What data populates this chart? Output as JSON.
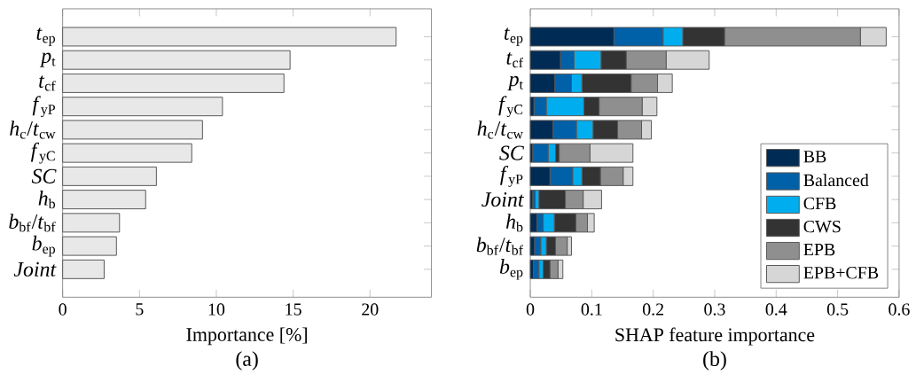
{
  "chart_data": [
    {
      "type": "bar",
      "orientation": "horizontal",
      "xlabel": "Importance [%]",
      "categories": [
        "*t*$_{ep}$",
        "*p*$_{t}$",
        "*t*$_{cf}$",
        "*f*$_{yP}$",
        "*h*$_{c}$/*t*$_{cw}$",
        "*f*$_{yC}$",
        "*SC*",
        "*h*$_{b}$",
        "*b*$_{bf}$/*t*$_{bf}$",
        "*b*$_{ep}$",
        "*Joint*"
      ],
      "values": [
        21.7,
        14.8,
        14.4,
        10.4,
        9.1,
        8.4,
        6.1,
        5.4,
        3.7,
        3.5,
        2.7
      ],
      "color": "#e8e8e8",
      "xlim": [
        0,
        24
      ],
      "xticks": [
        0,
        5,
        10,
        15,
        20
      ],
      "annotations": [
        "(a)"
      ]
    },
    {
      "type": "bar",
      "orientation": "horizontal",
      "stacked": true,
      "xlabel": "SHAP feature importance",
      "categories": [
        "*t*$_{ep}$",
        "*t*$_{cf}$",
        "*p*$_{t}$",
        "*f*$_{yC}$",
        "*h*$_{c}$/*t*$_{cw}$",
        "*SC*",
        "*f*$_{yP}$",
        "*Joint*",
        "*h*$_{b}$",
        "*b*$_{bf}$/*t*$_{bf}$",
        "*b*$_{ep}$"
      ],
      "series": [
        {
          "name": "BB",
          "color": "#002b55",
          "values": [
            0.136,
            0.049,
            0.04,
            0.006,
            0.037,
            0.004,
            0.032,
            0.004,
            0.011,
            0.007,
            0.005
          ]
        },
        {
          "name": "Balanced",
          "color": "#0060a8",
          "values": [
            0.08,
            0.022,
            0.027,
            0.02,
            0.038,
            0.025,
            0.037,
            0.004,
            0.01,
            0.01,
            0.009
          ]
        },
        {
          "name": "CFB",
          "color": "#00aeef",
          "values": [
            0.032,
            0.044,
            0.017,
            0.061,
            0.027,
            0.012,
            0.015,
            0.006,
            0.018,
            0.009,
            0.007
          ]
        },
        {
          "name": "CWS",
          "color": "#333333",
          "values": [
            0.068,
            0.041,
            0.08,
            0.025,
            0.04,
            0.006,
            0.03,
            0.043,
            0.035,
            0.015,
            0.011
          ]
        },
        {
          "name": "EPB",
          "color": "#8f8f8f",
          "values": [
            0.221,
            0.065,
            0.043,
            0.07,
            0.039,
            0.05,
            0.037,
            0.029,
            0.019,
            0.019,
            0.013
          ]
        },
        {
          "name": "EPB+CFB",
          "color": "#d6d6d6",
          "values": [
            0.042,
            0.07,
            0.024,
            0.024,
            0.016,
            0.07,
            0.016,
            0.03,
            0.011,
            0.007,
            0.008
          ]
        }
      ],
      "legend": "bottom right",
      "xlim": [
        0,
        0.6
      ],
      "xticks": [
        0,
        0.1,
        0.2,
        0.3,
        0.4,
        0.5,
        0.6
      ],
      "annotations": [
        "(b)"
      ]
    }
  ]
}
